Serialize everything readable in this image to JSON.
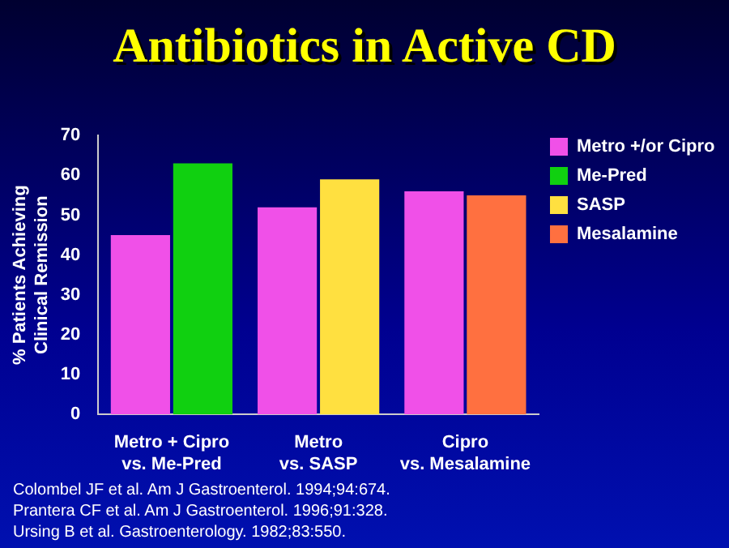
{
  "chart_data": {
    "type": "bar",
    "title": "Antibiotics in Active CD",
    "ylabel": "% Patients Achieving\nClinical Remission",
    "categories": [
      "Metro + Cipro\nvs. Me-Pred",
      "Metro\nvs. SASP",
      "Cipro\nvs. Mesalamine"
    ],
    "series": [
      {
        "name": "Metro +/or Cipro",
        "color": "#f050e8",
        "values": [
          45,
          52,
          56
        ]
      },
      {
        "name": "Me-Pred",
        "color": "#10d010",
        "values": [
          63,
          null,
          null
        ]
      },
      {
        "name": "SASP",
        "color": "#ffe040",
        "values": [
          null,
          59,
          null
        ]
      },
      {
        "name": "Mesalamine",
        "color": "#ff7040",
        "values": [
          null,
          null,
          55
        ]
      }
    ],
    "ylim": [
      0,
      70
    ],
    "yticks": [
      0,
      10,
      20,
      30,
      40,
      50,
      60,
      70
    ],
    "grid": false,
    "legend": "top right",
    "annotations": [
      "Colombel JF et al. Am J Gastroenterol. 1994;94:674.",
      "Prantera CF et al. Am J Gastroenterol. 1996;91:328.",
      "Ursing B et al. Gastroenterology. 1982;83:550."
    ]
  }
}
